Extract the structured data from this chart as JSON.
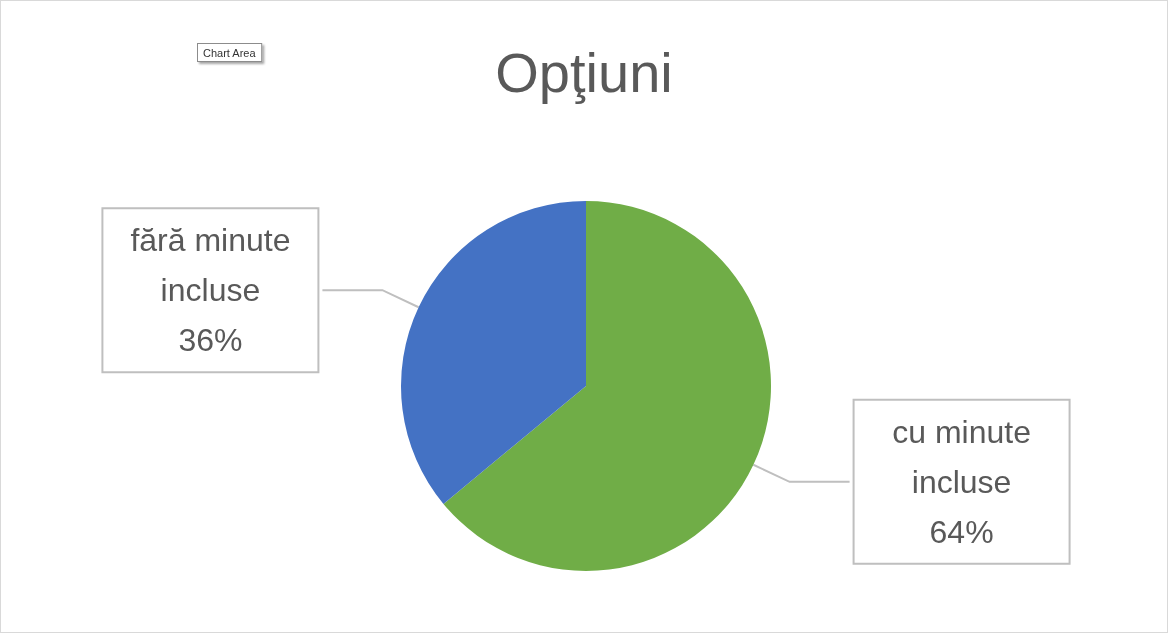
{
  "chart_data": {
    "type": "pie",
    "title": "Opţiuni",
    "categories": [
      "cu minute incluse",
      "fără minute incluse"
    ],
    "values": [
      64,
      36
    ],
    "colors": [
      "#70ad47",
      "#4472c4"
    ],
    "value_labels": [
      "64%",
      "36%"
    ],
    "legend": false,
    "annotations": [
      "Chart Area"
    ]
  }
}
